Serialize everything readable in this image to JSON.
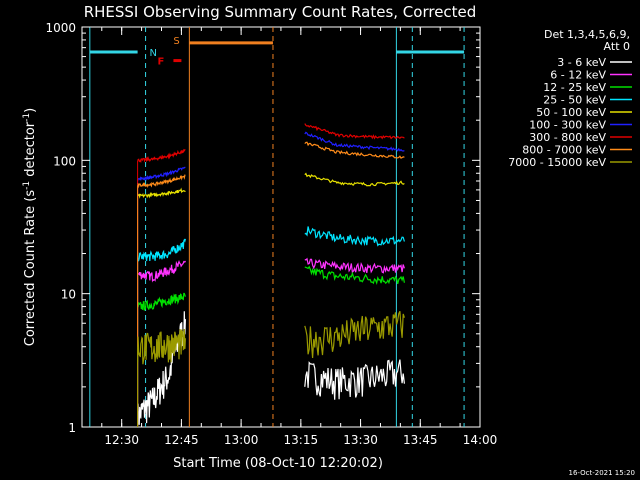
{
  "chart_data": {
    "type": "line",
    "title": "RHESSI Observing Summary Count Rates, Corrected",
    "xlabel": "Start Time (08-Oct-10 12:20:02)",
    "ylabel": "Corrected Count Rate (s⁻¹ detector⁻¹)",
    "ylabel_main": "Corrected Count Rate (s",
    "ylabel_sup1": "-1",
    "ylabel_mid": " detector",
    "ylabel_sup2": "-1",
    "ylabel_end": ")",
    "y_scale": "log",
    "ylim": [
      1,
      1000
    ],
    "xlim": [
      "12:20:02",
      "14:00"
    ],
    "x_tick_labels": [
      "12:30",
      "12:45",
      "13:00",
      "13:15",
      "13:30",
      "13:45",
      "14:00"
    ],
    "y_tick_labels": [
      "1",
      "10",
      "100",
      "1000"
    ],
    "grid": false,
    "legend_placement": "right",
    "legend_header": [
      "Det 1,3,4,5,6,9,",
      "Att 0"
    ],
    "footer_date": "16-Oct-2021 15:20",
    "flags": {
      "N": {
        "label": "N",
        "color": "#33d6e6"
      },
      "F": {
        "label": "F",
        "color": "#e00000"
      },
      "S": {
        "label": "S",
        "color": "#f08020"
      }
    },
    "series": [
      {
        "name": "3 - 6 keV",
        "color": "#ffffff",
        "segments": [
          {
            "x": [
              "12:34",
              "12:38",
              "12:42",
              "12:46"
            ],
            "y": [
              1.2,
              1.6,
              2.5,
              6
            ]
          },
          {
            "x": [
              "13:16",
              "13:24",
              "13:32",
              "13:41"
            ],
            "y": [
              2.5,
              2.2,
              2.3,
              2.6
            ]
          }
        ]
      },
      {
        "name": "6 - 12 keV",
        "color": "#ff33ff",
        "segments": [
          {
            "x": [
              "12:34",
              "12:38",
              "12:42",
              "12:46"
            ],
            "y": [
              14,
              13.5,
              15,
              17
            ]
          },
          {
            "x": [
              "13:16",
              "13:24",
              "13:32",
              "13:41"
            ],
            "y": [
              17,
              16,
              15.5,
              15.5
            ]
          }
        ]
      },
      {
        "name": "12 - 25 keV",
        "color": "#00e000",
        "segments": [
          {
            "x": [
              "12:34",
              "12:38",
              "12:42",
              "12:46"
            ],
            "y": [
              8,
              8.3,
              9,
              9.5
            ]
          },
          {
            "x": [
              "13:16",
              "13:24",
              "13:32",
              "13:41"
            ],
            "y": [
              15,
              13.5,
              13,
              12.5
            ]
          }
        ]
      },
      {
        "name": "25 - 50 keV",
        "color": "#00e5ff",
        "segments": [
          {
            "x": [
              "12:34",
              "12:38",
              "12:42",
              "12:46"
            ],
            "y": [
              19,
              19,
              20,
              24
            ]
          },
          {
            "x": [
              "13:16",
              "13:24",
              "13:32",
              "13:41"
            ],
            "y": [
              30,
              26,
              25,
              25
            ]
          }
        ]
      },
      {
        "name": "50 - 100 keV",
        "color": "#e6e000",
        "segments": [
          {
            "x": [
              "12:34",
              "12:38",
              "12:42",
              "12:46"
            ],
            "y": [
              54,
              55,
              57,
              60
            ]
          },
          {
            "x": [
              "13:16",
              "13:24",
              "13:32",
              "13:41"
            ],
            "y": [
              78,
              68,
              66,
              68
            ]
          }
        ]
      },
      {
        "name": "100 - 300 keV",
        "color": "#2020ff",
        "segments": [
          {
            "x": [
              "12:34",
              "12:38",
              "12:42",
              "12:46"
            ],
            "y": [
              72,
              75,
              80,
              88
            ]
          },
          {
            "x": [
              "13:16",
              "13:24",
              "13:32",
              "13:41"
            ],
            "y": [
              160,
              130,
              125,
              120
            ]
          }
        ]
      },
      {
        "name": "300 - 800 keV",
        "color": "#e00000",
        "segments": [
          {
            "x": [
              "12:34",
              "12:38",
              "12:42",
              "12:46"
            ],
            "y": [
              100,
              102,
              108,
              118
            ]
          },
          {
            "x": [
              "13:16",
              "13:24",
              "13:32",
              "13:41"
            ],
            "y": [
              185,
              155,
              150,
              148
            ]
          }
        ]
      },
      {
        "name": "800 - 7000 keV",
        "color": "#ff8c1a",
        "segments": [
          {
            "x": [
              "12:34",
              "12:38",
              "12:42",
              "12:46"
            ],
            "y": [
              65,
              66,
              70,
              76
            ]
          },
          {
            "x": [
              "13:16",
              "13:24",
              "13:32",
              "13:41"
            ],
            "y": [
              135,
              115,
              110,
              105
            ]
          }
        ]
      },
      {
        "name": "7000 - 15000 keV",
        "color": "#9a9a00",
        "segments": [
          {
            "x": [
              "12:34",
              "12:38",
              "12:42",
              "12:46"
            ],
            "y": [
              4,
              4,
              4.2,
              4.3
            ]
          },
          {
            "x": [
              "13:16",
              "13:24",
              "13:32",
              "13:41"
            ],
            "y": [
              4.5,
              4.8,
              5.5,
              6
            ]
          }
        ]
      }
    ]
  }
}
